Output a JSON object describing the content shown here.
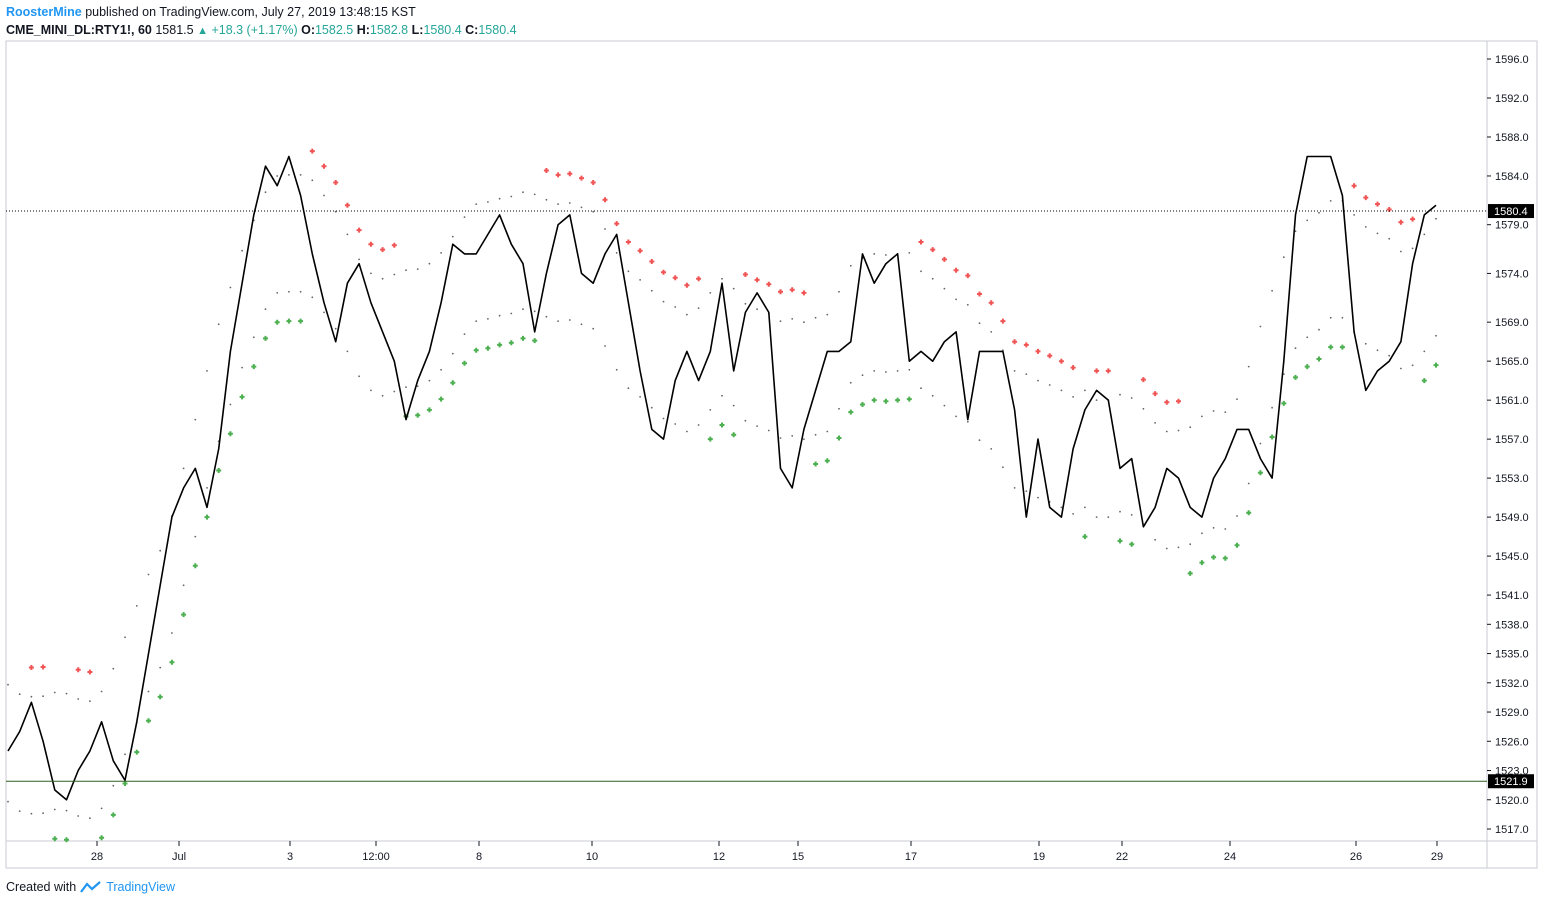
{
  "header": {
    "author": "RoosterMine",
    "published": "published on TradingView.com, July 27, 2019 13:48:15 KST",
    "symbol": "CME_MINI_DL:RTY1!, 60",
    "last": "1581.5",
    "change": "+18.3 (+1.17%)",
    "o_label": "O:",
    "o_value": "1582.5",
    "h_label": "H:",
    "h_value": "1582.8",
    "l_label": "L:",
    "l_value": "1580.4",
    "c_label": "C:",
    "c_value": "1580.4"
  },
  "footer": {
    "created_with": "Created with",
    "brand": "TradingView"
  },
  "colors": {
    "up": "#26a69a",
    "line": "#000000",
    "sar_green": "#4caf50",
    "sar_red": "#f05454",
    "signal_long": "#2196f3",
    "signal_close": "#c23ee0",
    "support": "#2e5e1e"
  },
  "chart_data": {
    "type": "line",
    "ylim": [
      1514,
      1598
    ],
    "y_ticks": [
      "1596.0",
      "1592.0",
      "1588.0",
      "1584.0",
      "1579.0",
      "1574.0",
      "1569.0",
      "1565.0",
      "1561.0",
      "1557.0",
      "1553.0",
      "1549.0",
      "1545.0",
      "1541.0",
      "1538.0",
      "1535.0",
      "1532.0",
      "1529.0",
      "1526.0",
      "1523.0",
      "1520.0",
      "1517.0"
    ],
    "x_ticks": [
      "28",
      "Jul",
      "3",
      "12:00",
      "8",
      "10",
      "12",
      "15",
      "17",
      "19",
      "22",
      "24",
      "26",
      "29"
    ],
    "price_label": "1580.4",
    "support_label": "1521.9",
    "price_line": 1580.4,
    "support_line": 1521.9,
    "series": [
      {
        "values": [
          1525,
          1527,
          1530,
          1526,
          1521,
          1520,
          1523,
          1525,
          1528,
          1524,
          1522,
          1528,
          1535,
          1542,
          1549,
          1552,
          1554,
          1550,
          1556,
          1566,
          1573,
          1580,
          1585,
          1583,
          1586,
          1582,
          1576,
          1571,
          1567,
          1573,
          1575,
          1571,
          1568,
          1565,
          1559,
          1563,
          1566,
          1571,
          1577,
          1576,
          1576,
          1578,
          1580,
          1577,
          1575,
          1568,
          1574,
          1579,
          1580,
          1574,
          1573,
          1576,
          1578,
          1571,
          1564,
          1558,
          1557,
          1563,
          1566,
          1563,
          1566,
          1573,
          1564,
          1570,
          1572,
          1570,
          1554,
          1552,
          1558,
          1562,
          1566,
          1566,
          1567,
          1576,
          1573,
          1575,
          1576,
          1565,
          1566,
          1565,
          1567,
          1568,
          1559,
          1566,
          1566,
          1566,
          1560,
          1549,
          1557,
          1550,
          1549,
          1556,
          1560,
          1562,
          1561,
          1554,
          1555,
          1548,
          1550,
          1554,
          1553,
          1550,
          1549,
          1553,
          1555,
          1558,
          1558,
          1555,
          1553,
          1565,
          1580,
          1586,
          1586,
          1586,
          1582,
          1568,
          1562,
          1564,
          1565,
          1567,
          1575,
          1580,
          1581
        ]
      }
    ]
  }
}
